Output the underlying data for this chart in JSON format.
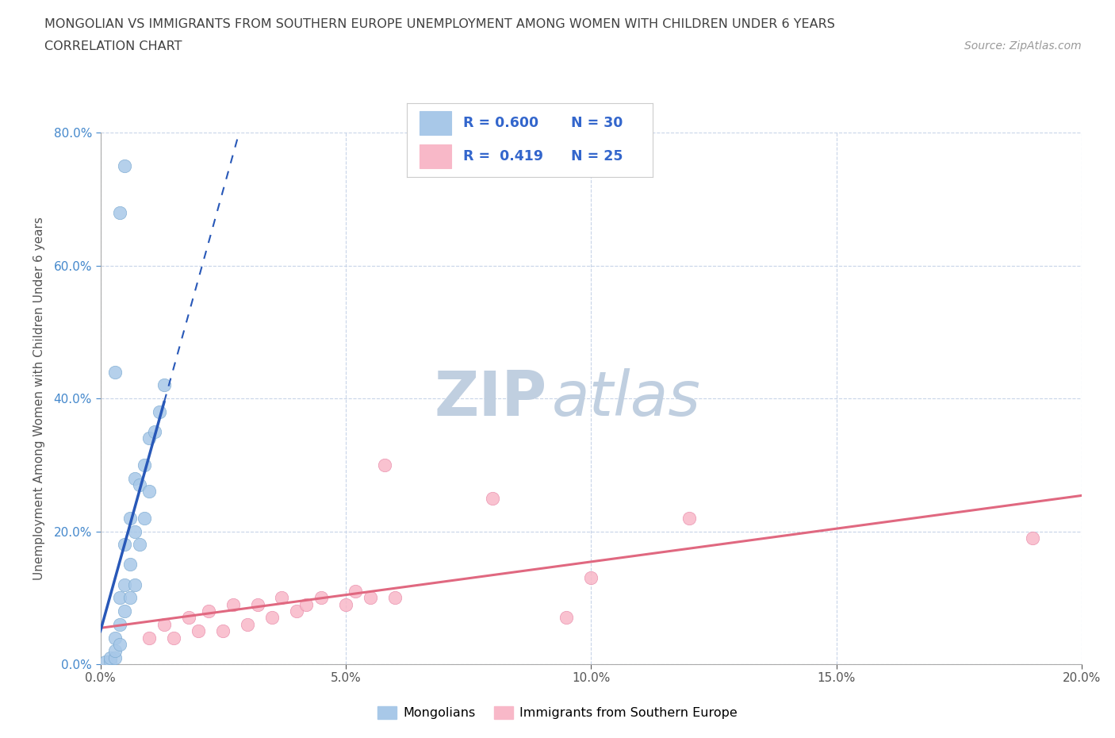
{
  "title_line1": "MONGOLIAN VS IMMIGRANTS FROM SOUTHERN EUROPE UNEMPLOYMENT AMONG WOMEN WITH CHILDREN UNDER 6 YEARS",
  "title_line2": "CORRELATION CHART",
  "source": "Source: ZipAtlas.com",
  "ylabel": "Unemployment Among Women with Children Under 6 years",
  "watermark_zip": "ZIP",
  "watermark_atlas": "atlas",
  "xlim": [
    0.0,
    0.2
  ],
  "ylim": [
    0.0,
    0.8
  ],
  "xticks": [
    0.0,
    0.05,
    0.1,
    0.15,
    0.2
  ],
  "yticks": [
    0.0,
    0.2,
    0.4,
    0.6,
    0.8
  ],
  "mongolian_color": "#a8c8e8",
  "mongolian_edge": "#78a8d0",
  "southern_europe_color": "#f8b8c8",
  "southern_europe_edge": "#e888a8",
  "trend_mongolian_color": "#2858b8",
  "trend_southern_color": "#e06880",
  "legend_r_mongolian": "R = 0.600",
  "legend_n_mongolian": "N = 30",
  "legend_r_southern": "R =  0.419",
  "legend_n_southern": "N = 25",
  "mongolian_x": [
    0.001,
    0.002,
    0.002,
    0.003,
    0.003,
    0.003,
    0.004,
    0.004,
    0.004,
    0.005,
    0.005,
    0.005,
    0.006,
    0.006,
    0.006,
    0.007,
    0.007,
    0.007,
    0.008,
    0.008,
    0.009,
    0.009,
    0.01,
    0.01,
    0.011,
    0.012,
    0.013,
    0.003,
    0.004,
    0.005
  ],
  "mongolian_y": [
    0.003,
    0.005,
    0.01,
    0.01,
    0.02,
    0.04,
    0.03,
    0.06,
    0.1,
    0.08,
    0.12,
    0.18,
    0.1,
    0.15,
    0.22,
    0.12,
    0.2,
    0.28,
    0.18,
    0.27,
    0.22,
    0.3,
    0.26,
    0.34,
    0.35,
    0.38,
    0.42,
    0.44,
    0.68,
    0.75
  ],
  "southern_x": [
    0.01,
    0.013,
    0.015,
    0.018,
    0.02,
    0.022,
    0.025,
    0.027,
    0.03,
    0.032,
    0.035,
    0.037,
    0.04,
    0.042,
    0.045,
    0.05,
    0.052,
    0.055,
    0.058,
    0.06,
    0.08,
    0.095,
    0.1,
    0.12,
    0.19
  ],
  "southern_y": [
    0.04,
    0.06,
    0.04,
    0.07,
    0.05,
    0.08,
    0.05,
    0.09,
    0.06,
    0.09,
    0.07,
    0.1,
    0.08,
    0.09,
    0.1,
    0.09,
    0.11,
    0.1,
    0.3,
    0.1,
    0.25,
    0.07,
    0.13,
    0.22,
    0.19
  ],
  "background_color": "#ffffff",
  "grid_color": "#c8d4e8",
  "title_color": "#404040",
  "watermark_color": "#c0cfe0",
  "legend_text_color": "#3366cc"
}
